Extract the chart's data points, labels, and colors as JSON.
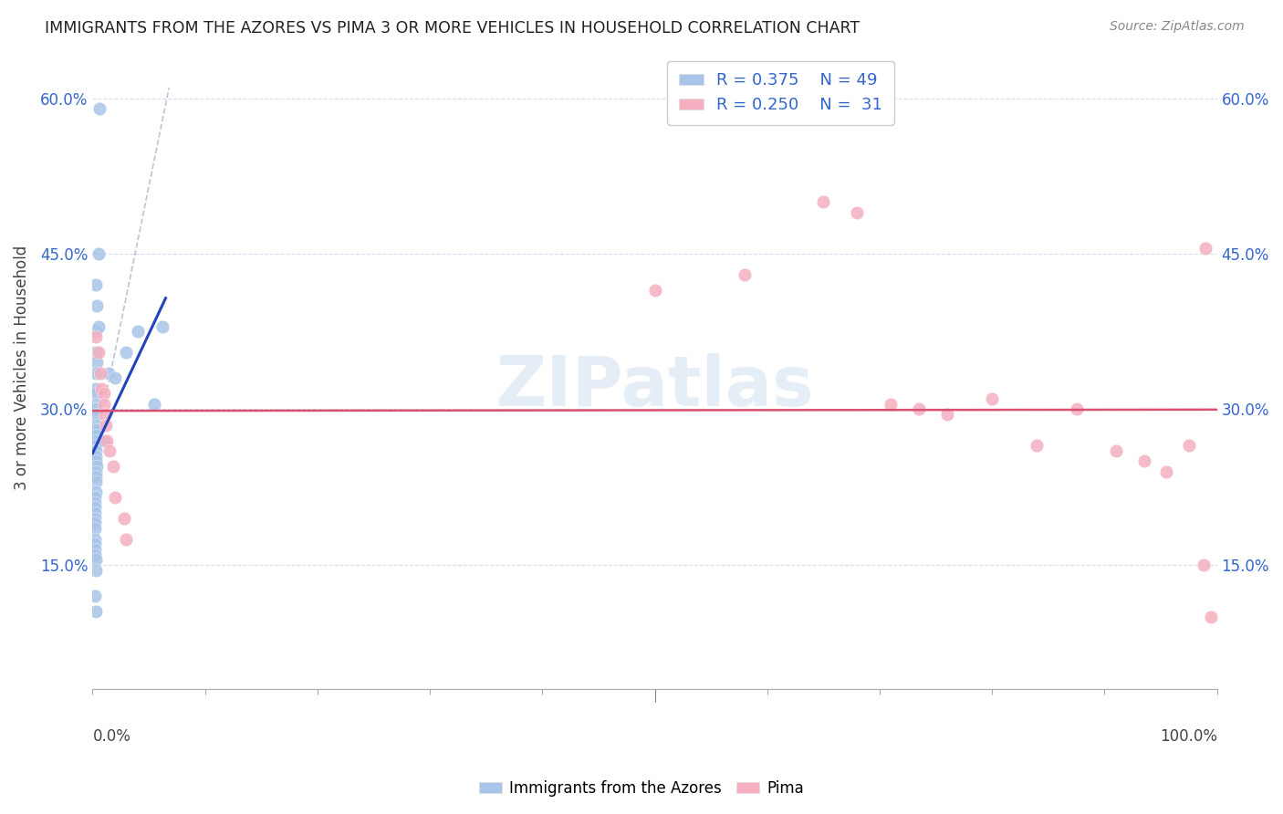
{
  "title": "IMMIGRANTS FROM THE AZORES VS PIMA 3 OR MORE VEHICLES IN HOUSEHOLD CORRELATION CHART",
  "source": "Source: ZipAtlas.com",
  "ylabel": "3 or more Vehicles in Household",
  "ytick_labels": [
    "15.0%",
    "30.0%",
    "45.0%",
    "60.0%"
  ],
  "ytick_values": [
    0.15,
    0.3,
    0.45,
    0.6
  ],
  "xlim": [
    0.0,
    1.0
  ],
  "ylim": [
    0.03,
    0.65
  ],
  "legend_blue_r": "0.375",
  "legend_blue_n": "49",
  "legend_pink_r": "0.250",
  "legend_pink_n": "31",
  "legend_label_blue": "Immigrants from the Azores",
  "legend_label_pink": "Pima",
  "blue_color": "#a8c4e8",
  "pink_color": "#f5afc0",
  "blue_line_color": "#2244bb",
  "pink_line_color": "#d95070",
  "dashed_line_color": "#b0bcd0",
  "watermark": "ZIPatlas",
  "blue_x": [
    0.006,
    0.005,
    0.004,
    0.003,
    0.003,
    0.003,
    0.004,
    0.005,
    0.003,
    0.003,
    0.004,
    0.003,
    0.003,
    0.003,
    0.003,
    0.003,
    0.003,
    0.003,
    0.003,
    0.003,
    0.003,
    0.003,
    0.004,
    0.003,
    0.003,
    0.003,
    0.003,
    0.002,
    0.002,
    0.002,
    0.002,
    0.002,
    0.002,
    0.002,
    0.002,
    0.002,
    0.002,
    0.002,
    0.003,
    0.002,
    0.01,
    0.014,
    0.02,
    0.03,
    0.04,
    0.055,
    0.062,
    0.003,
    0.003
  ],
  "blue_y": [
    0.59,
    0.45,
    0.4,
    0.42,
    0.375,
    0.355,
    0.345,
    0.38,
    0.335,
    0.32,
    0.315,
    0.305,
    0.3,
    0.295,
    0.285,
    0.28,
    0.275,
    0.27,
    0.265,
    0.26,
    0.255,
    0.25,
    0.245,
    0.24,
    0.235,
    0.23,
    0.22,
    0.215,
    0.21,
    0.205,
    0.2,
    0.195,
    0.19,
    0.185,
    0.175,
    0.17,
    0.165,
    0.16,
    0.155,
    0.12,
    0.27,
    0.335,
    0.33,
    0.355,
    0.375,
    0.305,
    0.38,
    0.145,
    0.105
  ],
  "pink_x": [
    0.003,
    0.005,
    0.007,
    0.008,
    0.01,
    0.01,
    0.011,
    0.012,
    0.013,
    0.015,
    0.018,
    0.02,
    0.028,
    0.5,
    0.58,
    0.65,
    0.68,
    0.71,
    0.735,
    0.76,
    0.8,
    0.84,
    0.875,
    0.91,
    0.935,
    0.955,
    0.975,
    0.988,
    0.995,
    0.99,
    0.03
  ],
  "pink_y": [
    0.37,
    0.355,
    0.335,
    0.32,
    0.315,
    0.305,
    0.295,
    0.285,
    0.27,
    0.26,
    0.245,
    0.215,
    0.195,
    0.415,
    0.43,
    0.5,
    0.49,
    0.305,
    0.3,
    0.295,
    0.31,
    0.265,
    0.3,
    0.26,
    0.25,
    0.24,
    0.265,
    0.15,
    0.1,
    0.455,
    0.175
  ]
}
